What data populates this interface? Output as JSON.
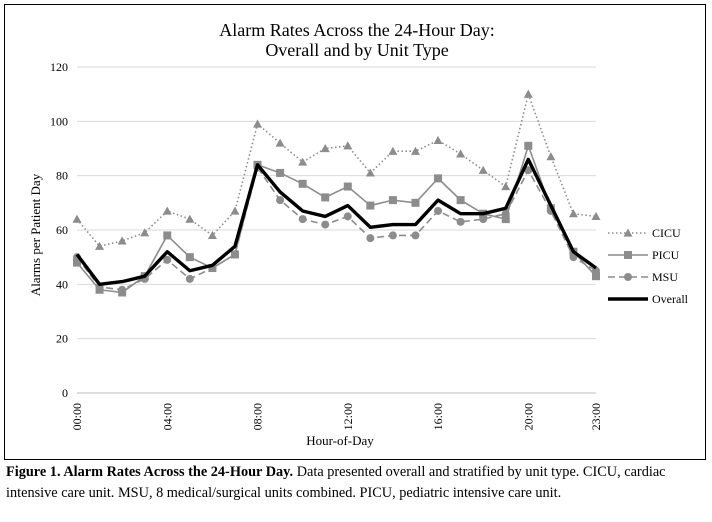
{
  "chart_data": {
    "type": "line",
    "title": "Alarm Rates Across the 24-Hour Day:",
    "subtitle": "Overall and by Unit Type",
    "xlabel": "Hour-of-Day",
    "ylabel": "Alarms per Patient Day",
    "ylim": [
      0,
      120
    ],
    "yticks": [
      0,
      20,
      40,
      60,
      80,
      100,
      120
    ],
    "x": [
      0,
      1,
      2,
      3,
      4,
      5,
      6,
      7,
      8,
      9,
      10,
      11,
      12,
      13,
      14,
      15,
      16,
      17,
      18,
      19,
      20,
      21,
      22,
      23
    ],
    "xtick_labels": [
      {
        "hour": 0,
        "label": "00:00"
      },
      {
        "hour": 4,
        "label": "04:00"
      },
      {
        "hour": 8,
        "label": "08:00"
      },
      {
        "hour": 12,
        "label": "12:00"
      },
      {
        "hour": 16,
        "label": "16:00"
      },
      {
        "hour": 20,
        "label": "20:00"
      },
      {
        "hour": 23,
        "label": "23:00"
      }
    ],
    "grid": "horizontal",
    "legend_position": "right",
    "series": [
      {
        "name": "CICU",
        "marker": "triangle",
        "style": "dotted",
        "color": "#8c8c8c",
        "values": [
          64,
          54,
          56,
          59,
          67,
          64,
          58,
          67,
          99,
          92,
          85,
          90,
          91,
          81,
          89,
          89,
          93,
          88,
          82,
          76,
          110,
          87,
          66,
          65
        ]
      },
      {
        "name": "PICU",
        "marker": "square",
        "style": "solid",
        "color": "#8c8c8c",
        "values": [
          48,
          38,
          37,
          43,
          58,
          50,
          46,
          51,
          84,
          81,
          77,
          72,
          76,
          69,
          71,
          70,
          79,
          71,
          66,
          64,
          91,
          68,
          52,
          43
        ]
      },
      {
        "name": "MSU",
        "marker": "circle",
        "style": "dashed",
        "color": "#8c8c8c",
        "values": [
          50,
          39,
          38,
          42,
          49,
          42,
          46,
          51,
          83,
          71,
          64,
          62,
          65,
          57,
          58,
          58,
          67,
          63,
          64,
          66,
          82,
          67,
          50,
          45
        ]
      },
      {
        "name": "Overall",
        "marker": "none",
        "style": "thick",
        "color": "#000000",
        "values": [
          51,
          40,
          41,
          43,
          52,
          45,
          47,
          54,
          84,
          74,
          67,
          65,
          69,
          61,
          62,
          62,
          71,
          66,
          66,
          68,
          86,
          69,
          52,
          46
        ]
      }
    ]
  },
  "caption": {
    "bold": "Figure 1. Alarm Rates Across the 24-Hour Day.",
    "text": " Data presented overall and stratified by unit type. CICU, cardiac intensive care unit. MSU, 8 medical/surgical units combined. PICU, pediatric intensive care unit."
  }
}
